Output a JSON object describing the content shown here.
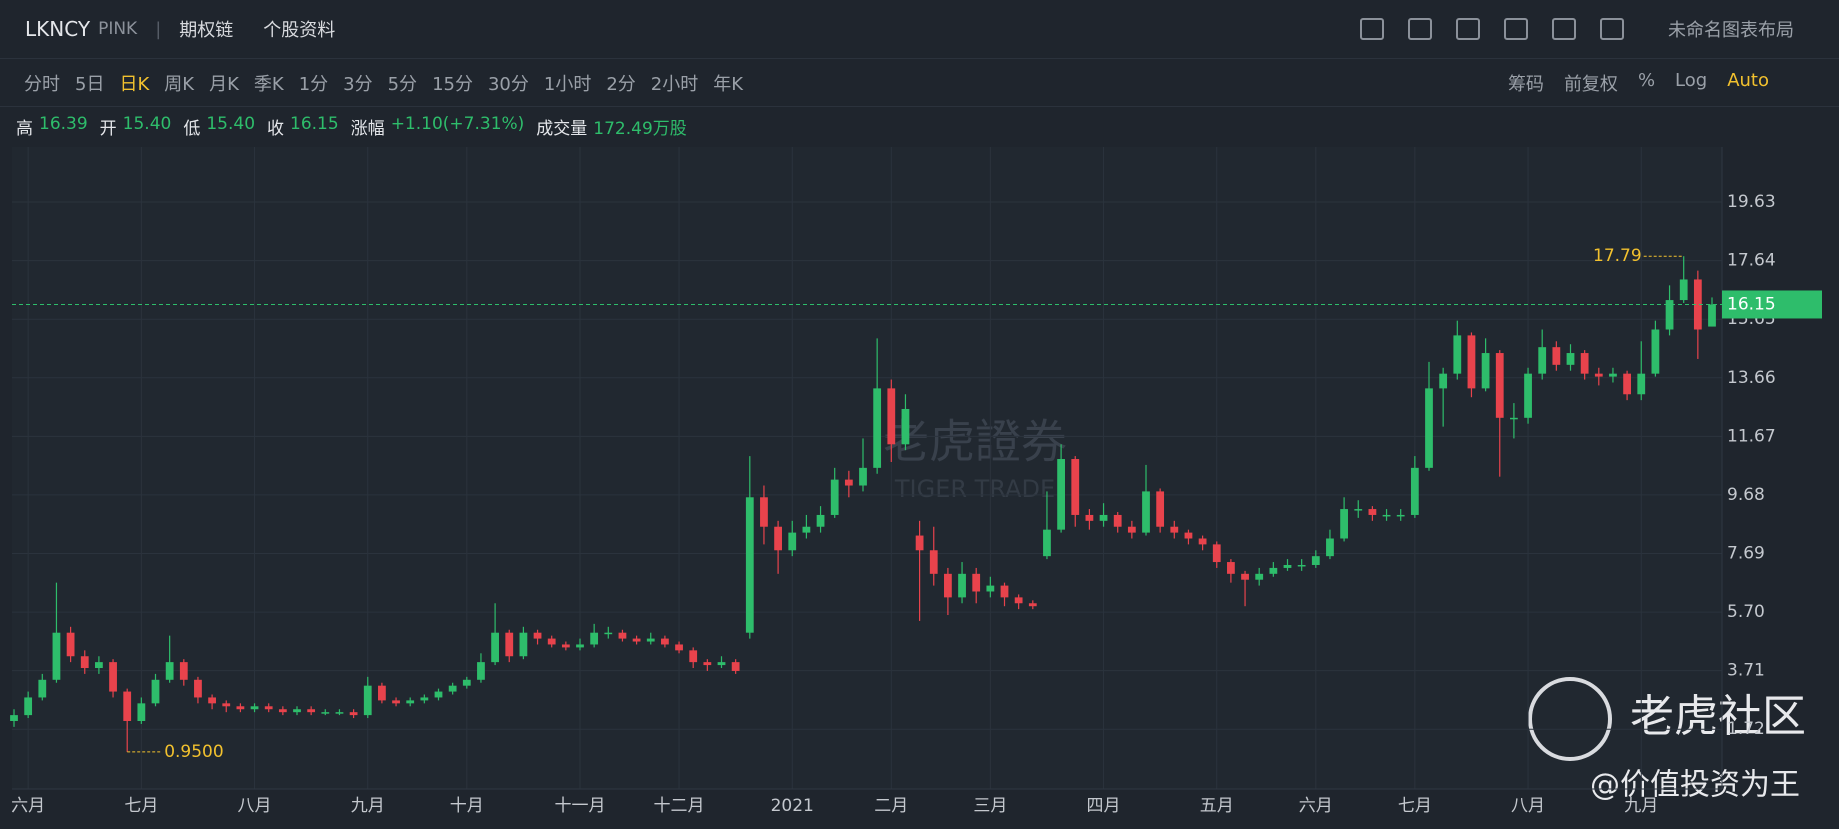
{
  "header": {
    "ticker": "LKNCY",
    "exchange": "PINK",
    "links": [
      "期权链",
      "个股资料"
    ],
    "layout": "未命名图表布局"
  },
  "toolbar": {
    "periods": [
      "分时",
      "5日",
      "日K",
      "周K",
      "月K",
      "季K",
      "1分",
      "3分",
      "5分",
      "15分",
      "30分",
      "1小时",
      "2分",
      "2小时",
      "年K"
    ],
    "active": "日K",
    "options": [
      "筹码",
      "前复权",
      "%",
      "Log",
      "Auto"
    ],
    "active_option": "Auto"
  },
  "quote": [
    [
      "高",
      "16.39"
    ],
    [
      "开",
      "15.40"
    ],
    [
      "低",
      "15.40"
    ],
    [
      "收",
      "16.15"
    ],
    [
      "涨幅",
      "+1.10(+7.31%)"
    ],
    [
      "成交量",
      "172.49万股"
    ]
  ],
  "watermark": {
    "name": "老虎證券",
    "sub": "TIGER TRADE",
    "community": "老虎社区",
    "author": "@价值投资为王"
  },
  "chart_data": {
    "type": "candlestick",
    "up_color": "#2ebd6b",
    "down_color": "#e8434c",
    "grid": true,
    "ylim": [
      -0.31,
      21.5
    ],
    "yticks": [
      1.72,
      3.71,
      {
        "value": 5.7,
        "label": "5.70"
      },
      7.69,
      9.68,
      11.67,
      13.66,
      15.65,
      17.64,
      19.63
    ],
    "xlim": [
      0,
      120
    ],
    "xticks": [
      {
        "value": 1,
        "label": "六月"
      },
      {
        "value": 9,
        "label": "七月"
      },
      {
        "value": 17,
        "label": "八月"
      },
      {
        "value": 25,
        "label": "九月"
      },
      {
        "value": 32,
        "label": "十月"
      },
      {
        "value": 40,
        "label": "十一月"
      },
      {
        "value": 47,
        "label": "十二月"
      },
      {
        "value": 55,
        "label": "2021"
      },
      {
        "value": 62,
        "label": "二月"
      },
      {
        "value": 69,
        "label": "三月"
      },
      {
        "value": 77,
        "label": "四月"
      },
      {
        "value": 85,
        "label": "五月"
      },
      {
        "value": 92,
        "label": "六月"
      },
      {
        "value": 99,
        "label": "七月"
      },
      {
        "value": 107,
        "label": "八月"
      },
      {
        "value": 115,
        "label": "九月"
      }
    ],
    "open": [
      2.0,
      2.2,
      2.8,
      3.4,
      5.0,
      4.2,
      3.8,
      4.0,
      3.0,
      2.0,
      2.6,
      3.4,
      4.0,
      3.4,
      2.8,
      2.6,
      2.5,
      2.4,
      2.5,
      2.4,
      2.3,
      2.4,
      2.3,
      2.3,
      2.3,
      2.2,
      3.2,
      2.7,
      2.6,
      2.7,
      2.8,
      3.0,
      3.2,
      3.4,
      4.0,
      5.0,
      4.2,
      5.0,
      4.8,
      4.6,
      4.5,
      4.6,
      5.0,
      5.0,
      4.8,
      4.7,
      4.8,
      4.6,
      4.4,
      4.0,
      3.9,
      4.0,
      5.0,
      9.6,
      8.6,
      7.8,
      8.4,
      8.6,
      9.0,
      10.2,
      10.0,
      10.6,
      13.3,
      11.4,
      8.3,
      7.8,
      7.0,
      6.2,
      7.0,
      6.4,
      6.6,
      6.2,
      6.0,
      7.6,
      8.5,
      10.9,
      9.0,
      8.8,
      9.0,
      8.6,
      8.4,
      9.8,
      8.6,
      8.4,
      8.2,
      8.0,
      7.4,
      7.0,
      6.8,
      7.0,
      7.2,
      7.3,
      7.3,
      7.6,
      8.2,
      9.2,
      9.2,
      9.0,
      9.0,
      9.0,
      10.6,
      13.3,
      13.8,
      15.1,
      13.3,
      14.5,
      12.3,
      12.3,
      13.8,
      14.7,
      14.1,
      14.5,
      13.8,
      13.7,
      13.8,
      13.1,
      13.8,
      15.3,
      16.3,
      17.0,
      15.4
    ],
    "high": [
      2.4,
      3.0,
      3.6,
      6.7,
      5.2,
      4.4,
      4.2,
      4.1,
      3.1,
      2.8,
      3.6,
      4.9,
      4.1,
      3.5,
      2.9,
      2.7,
      2.6,
      2.6,
      2.6,
      2.5,
      2.5,
      2.5,
      2.4,
      2.4,
      2.4,
      3.5,
      3.3,
      2.8,
      2.8,
      2.9,
      3.1,
      3.3,
      3.5,
      4.3,
      6.0,
      5.1,
      5.2,
      5.1,
      4.9,
      4.7,
      4.8,
      5.3,
      5.2,
      5.1,
      4.9,
      5.0,
      4.9,
      4.7,
      4.5,
      4.1,
      4.2,
      4.1,
      11.0,
      10.0,
      8.8,
      8.8,
      9.0,
      9.3,
      10.6,
      10.5,
      11.6,
      15.0,
      13.6,
      13.1,
      8.8,
      8.6,
      7.2,
      7.4,
      7.2,
      6.9,
      6.7,
      6.3,
      6.1,
      9.8,
      11.4,
      11.0,
      9.2,
      9.4,
      9.1,
      8.8,
      10.7,
      9.9,
      8.8,
      8.5,
      8.3,
      8.1,
      7.5,
      7.1,
      7.2,
      7.4,
      7.5,
      7.5,
      7.8,
      8.5,
      9.6,
      9.5,
      9.3,
      9.2,
      9.2,
      11.0,
      14.2,
      14.0,
      15.6,
      15.2,
      15.0,
      14.6,
      12.8,
      14.0,
      15.3,
      14.9,
      14.8,
      14.6,
      14.0,
      14.0,
      13.9,
      14.9,
      15.6,
      16.8,
      17.79,
      17.3,
      16.39
    ],
    "low": [
      1.8,
      2.1,
      2.7,
      3.3,
      4.0,
      3.6,
      3.6,
      2.8,
      0.95,
      1.9,
      2.5,
      3.3,
      3.2,
      2.6,
      2.4,
      2.3,
      2.3,
      2.3,
      2.3,
      2.2,
      2.2,
      2.2,
      2.2,
      2.2,
      2.1,
      2.1,
      2.6,
      2.5,
      2.5,
      2.6,
      2.7,
      2.9,
      3.1,
      3.3,
      3.9,
      4.0,
      4.1,
      4.6,
      4.5,
      4.4,
      4.4,
      4.5,
      4.8,
      4.7,
      4.6,
      4.6,
      4.5,
      4.3,
      3.8,
      3.7,
      3.8,
      3.6,
      4.8,
      8.0,
      7.0,
      7.6,
      8.2,
      8.4,
      8.9,
      9.6,
      9.8,
      10.4,
      10.8,
      11.2,
      5.4,
      6.6,
      5.6,
      6.0,
      6.0,
      6.2,
      5.9,
      5.8,
      5.8,
      7.5,
      8.4,
      8.6,
      8.5,
      8.6,
      8.4,
      8.2,
      8.3,
      8.4,
      8.2,
      8.0,
      7.8,
      7.2,
      6.7,
      5.9,
      6.6,
      6.9,
      7.1,
      7.1,
      7.2,
      7.5,
      8.1,
      8.9,
      8.8,
      8.8,
      8.8,
      8.9,
      10.5,
      12.0,
      13.6,
      13.0,
      13.2,
      10.3,
      11.6,
      12.1,
      13.6,
      13.9,
      13.9,
      13.6,
      13.4,
      13.5,
      12.9,
      12.9,
      13.7,
      15.1,
      16.2,
      14.3,
      15.4
    ],
    "close": [
      2.2,
      2.8,
      3.4,
      5.0,
      4.2,
      3.8,
      4.0,
      3.0,
      2.0,
      2.6,
      3.4,
      4.0,
      3.4,
      2.8,
      2.6,
      2.5,
      2.4,
      2.5,
      2.4,
      2.3,
      2.4,
      2.3,
      2.3,
      2.3,
      2.2,
      3.2,
      2.7,
      2.6,
      2.7,
      2.8,
      3.0,
      3.2,
      3.4,
      4.0,
      5.0,
      4.2,
      5.0,
      4.8,
      4.6,
      4.5,
      4.6,
      5.0,
      5.0,
      4.8,
      4.7,
      4.8,
      4.6,
      4.4,
      4.0,
      3.9,
      4.0,
      3.7,
      9.6,
      8.6,
      7.8,
      8.4,
      8.6,
      9.0,
      10.2,
      10.0,
      10.6,
      13.3,
      11.4,
      12.6,
      7.8,
      7.0,
      6.2,
      7.0,
      6.4,
      6.6,
      6.2,
      6.0,
      5.9,
      8.5,
      10.9,
      9.0,
      8.8,
      9.0,
      8.6,
      8.4,
      9.8,
      8.6,
      8.4,
      8.2,
      8.0,
      7.4,
      7.0,
      6.8,
      7.0,
      7.2,
      7.3,
      7.3,
      7.6,
      8.2,
      9.2,
      9.2,
      9.0,
      9.0,
      9.0,
      10.6,
      13.3,
      13.8,
      15.1,
      13.3,
      14.5,
      12.3,
      12.3,
      13.8,
      14.7,
      14.1,
      14.5,
      13.8,
      13.7,
      13.8,
      13.1,
      13.8,
      15.3,
      16.3,
      17.0,
      15.3,
      16.15
    ],
    "min_label": {
      "value": 0.95,
      "label": "0.9500"
    }
  }
}
